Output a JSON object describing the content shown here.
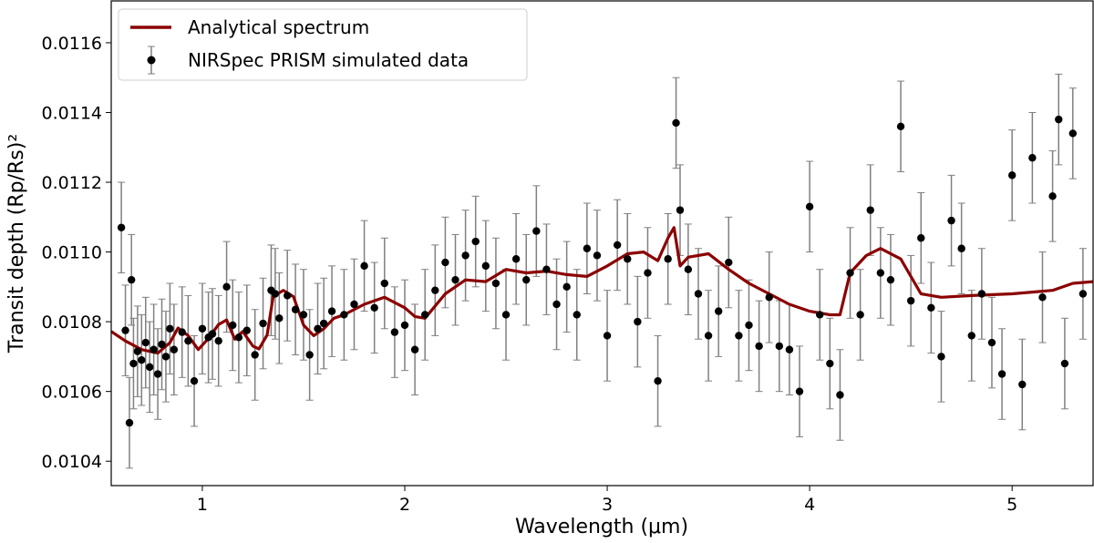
{
  "chart_data": {
    "type": "scatter",
    "xlabel": "Wavelength (μm)",
    "ylabel": "Transit depth (Rp/Rs)²",
    "xlim": [
      0.55,
      5.4
    ],
    "ylim": [
      0.01033,
      0.01172
    ],
    "grid": false,
    "legend_position": "top-left",
    "x_ticks": [
      1,
      2,
      3,
      4,
      5
    ],
    "x_tick_labels": [
      "1",
      "2",
      "3",
      "4",
      "5"
    ],
    "y_ticks": [
      0.0104,
      0.0106,
      0.0108,
      0.011,
      0.0112,
      0.0114,
      0.0116
    ],
    "y_tick_labels": [
      "0.0104",
      "0.0106",
      "0.0108",
      "0.0110",
      "0.0112",
      "0.0114",
      "0.0116"
    ],
    "series": [
      {
        "name": "Analytical spectrum",
        "kind": "line",
        "color": "#8b0000",
        "x": [
          0.55,
          0.62,
          0.7,
          0.78,
          0.84,
          0.88,
          0.93,
          0.98,
          1.03,
          1.08,
          1.12,
          1.16,
          1.2,
          1.25,
          1.28,
          1.32,
          1.35,
          1.4,
          1.45,
          1.5,
          1.55,
          1.6,
          1.65,
          1.7,
          1.8,
          1.9,
          2.0,
          2.05,
          2.1,
          2.2,
          2.3,
          2.4,
          2.5,
          2.6,
          2.7,
          2.8,
          2.9,
          3.0,
          3.1,
          3.18,
          3.25,
          3.3,
          3.33,
          3.36,
          3.4,
          3.5,
          3.6,
          3.7,
          3.8,
          3.9,
          4.0,
          4.1,
          4.15,
          4.2,
          4.28,
          4.35,
          4.45,
          4.55,
          4.65,
          4.8,
          5.0,
          5.2,
          5.3,
          5.4
        ],
        "y": [
          0.010772,
          0.010745,
          0.01072,
          0.01071,
          0.01074,
          0.010782,
          0.01076,
          0.01072,
          0.010752,
          0.010792,
          0.010805,
          0.01075,
          0.010772,
          0.01073,
          0.010722,
          0.010762,
          0.010872,
          0.01089,
          0.010872,
          0.01079,
          0.01076,
          0.01078,
          0.01081,
          0.01082,
          0.01085,
          0.01087,
          0.01084,
          0.010815,
          0.01081,
          0.01088,
          0.01092,
          0.010915,
          0.01095,
          0.01094,
          0.010945,
          0.010935,
          0.01093,
          0.01096,
          0.010995,
          0.011,
          0.010975,
          0.01104,
          0.01107,
          0.01096,
          0.010985,
          0.010995,
          0.01095,
          0.01091,
          0.01088,
          0.01085,
          0.01083,
          0.01082,
          0.01082,
          0.01094,
          0.01099,
          0.01101,
          0.01098,
          0.01088,
          0.01087,
          0.010875,
          0.01088,
          0.01089,
          0.01091,
          0.010915
        ]
      },
      {
        "name": "NIRSpec PRISM simulated data",
        "kind": "scatter_errorbar",
        "color": "#000000",
        "errorbar_color": "#808080",
        "error": 0.00013,
        "x": [
          0.6,
          0.62,
          0.64,
          0.65,
          0.66,
          0.68,
          0.7,
          0.72,
          0.74,
          0.76,
          0.78,
          0.8,
          0.82,
          0.84,
          0.86,
          0.9,
          0.93,
          0.96,
          1.0,
          1.03,
          1.05,
          1.08,
          1.12,
          1.15,
          1.18,
          1.22,
          1.26,
          1.3,
          1.34,
          1.36,
          1.38,
          1.42,
          1.46,
          1.5,
          1.53,
          1.57,
          1.6,
          1.64,
          1.7,
          1.75,
          1.8,
          1.85,
          1.9,
          1.95,
          2.0,
          2.05,
          2.1,
          2.15,
          2.2,
          2.25,
          2.3,
          2.35,
          2.4,
          2.45,
          2.5,
          2.55,
          2.6,
          2.65,
          2.7,
          2.75,
          2.8,
          2.85,
          2.9,
          2.95,
          3.0,
          3.05,
          3.1,
          3.15,
          3.2,
          3.25,
          3.3,
          3.34,
          3.36,
          3.4,
          3.45,
          3.5,
          3.55,
          3.6,
          3.65,
          3.7,
          3.75,
          3.8,
          3.85,
          3.9,
          3.95,
          4.0,
          4.05,
          4.1,
          4.15,
          4.2,
          4.25,
          4.3,
          4.35,
          4.4,
          4.45,
          4.5,
          4.55,
          4.6,
          4.65,
          4.7,
          4.75,
          4.8,
          4.85,
          4.9,
          4.95,
          5.0,
          5.05,
          5.1,
          5.15,
          5.2,
          5.23,
          5.26,
          5.3,
          5.35
        ],
        "y": [
          0.01107,
          0.010775,
          0.01051,
          0.01092,
          0.01068,
          0.010715,
          0.01069,
          0.01074,
          0.01067,
          0.01072,
          0.01065,
          0.010735,
          0.0107,
          0.01078,
          0.01072,
          0.01077,
          0.010745,
          0.01063,
          0.01078,
          0.010755,
          0.010765,
          0.010745,
          0.0109,
          0.01079,
          0.010755,
          0.010775,
          0.010705,
          0.010795,
          0.01089,
          0.01088,
          0.01081,
          0.010875,
          0.010835,
          0.01082,
          0.010705,
          0.01078,
          0.010795,
          0.01083,
          0.01082,
          0.01085,
          0.01096,
          0.01084,
          0.01091,
          0.01077,
          0.01079,
          0.01072,
          0.01082,
          0.01089,
          0.01097,
          0.01092,
          0.01099,
          0.01103,
          0.01096,
          0.01091,
          0.01082,
          0.01098,
          0.01092,
          0.01106,
          0.01095,
          0.01085,
          0.0109,
          0.01082,
          0.01101,
          0.01099,
          0.01076,
          0.01102,
          0.01098,
          0.0108,
          0.01094,
          0.01063,
          0.01098,
          0.01137,
          0.01112,
          0.01095,
          0.01088,
          0.01076,
          0.01083,
          0.01097,
          0.01076,
          0.01079,
          0.01073,
          0.01087,
          0.01073,
          0.01072,
          0.0106,
          0.01113,
          0.01082,
          0.01068,
          0.01059,
          0.01094,
          0.01082,
          0.01112,
          0.01094,
          0.01092,
          0.01136,
          0.01086,
          0.01104,
          0.01084,
          0.0107,
          0.01109,
          0.01101,
          0.01076,
          0.01088,
          0.01074,
          0.01065,
          0.01122,
          0.01062,
          0.01127,
          0.01087,
          0.01116,
          0.01138,
          0.01068,
          0.01134,
          0.01088
        ]
      }
    ]
  }
}
